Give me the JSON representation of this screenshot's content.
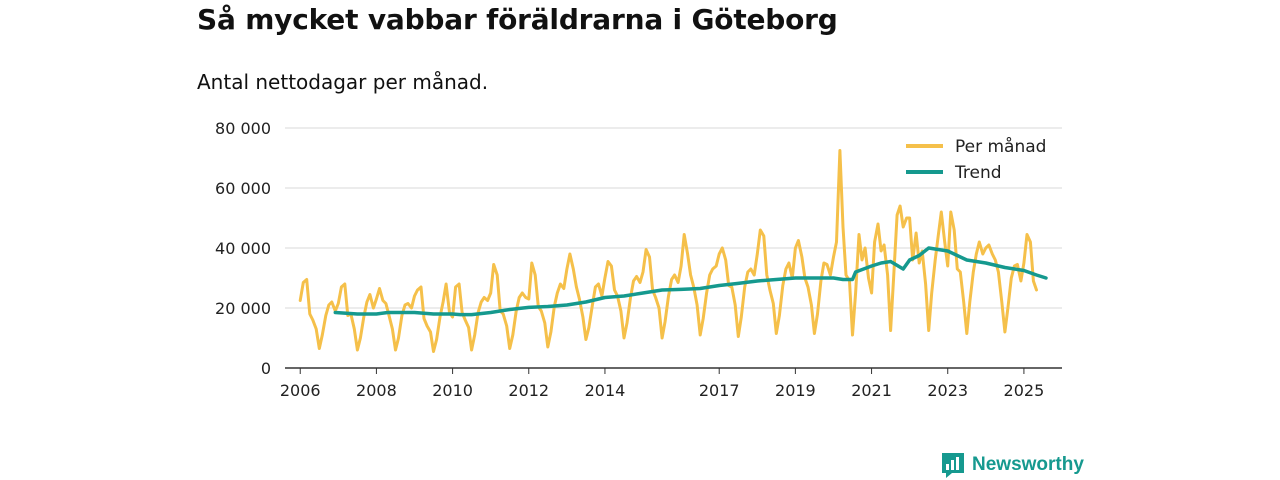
{
  "header": {
    "title": "Så mycket vabbar föräldrarna i Göteborg",
    "subtitle": "Antal nettodagar per månad."
  },
  "brand": {
    "name": "Newsworthy",
    "icon": "chart-bubble-icon",
    "color": "#16998f"
  },
  "colors": {
    "per_month": "#f5c04a",
    "trend": "#15998e",
    "grid": "#d9d9d9",
    "axis": "#333333"
  },
  "chart_data": {
    "type": "line",
    "title": "Så mycket vabbar föräldrarna i Göteborg",
    "subtitle": "Antal nettodagar per månad.",
    "xlabel": "",
    "ylabel": "",
    "ylim": [
      0,
      80000
    ],
    "xlim": [
      2005.6,
      2026.0
    ],
    "yticks": [
      0,
      20000,
      40000,
      60000,
      80000
    ],
    "ytick_labels": [
      "0",
      "20 000",
      "40 000",
      "60 000",
      "80 000"
    ],
    "xticks": [
      2006,
      2008,
      2010,
      2012,
      2014,
      2017,
      2019,
      2021,
      2023,
      2025
    ],
    "xtick_labels": [
      "2006",
      "2008",
      "2010",
      "2012",
      "2014",
      "2017",
      "2019",
      "2021",
      "2023",
      "2025"
    ],
    "grid": true,
    "legend_position": "top-right",
    "series": [
      {
        "name": "Per månad",
        "color": "#f5c04a",
        "points": [
          [
            2006.0,
            22500
          ],
          [
            2006.08,
            28500
          ],
          [
            2006.17,
            29500
          ],
          [
            2006.25,
            18000
          ],
          [
            2006.33,
            16000
          ],
          [
            2006.42,
            13000
          ],
          [
            2006.5,
            6500
          ],
          [
            2006.58,
            11000
          ],
          [
            2006.67,
            17500
          ],
          [
            2006.75,
            21000
          ],
          [
            2006.83,
            22000
          ],
          [
            2006.92,
            19000
          ],
          [
            2007.0,
            21500
          ],
          [
            2007.08,
            27000
          ],
          [
            2007.17,
            28000
          ],
          [
            2007.25,
            17500
          ],
          [
            2007.33,
            18000
          ],
          [
            2007.42,
            13000
          ],
          [
            2007.5,
            6000
          ],
          [
            2007.58,
            10000
          ],
          [
            2007.67,
            17000
          ],
          [
            2007.75,
            22000
          ],
          [
            2007.83,
            24500
          ],
          [
            2007.92,
            20000
          ],
          [
            2008.0,
            23000
          ],
          [
            2008.08,
            26500
          ],
          [
            2008.17,
            22500
          ],
          [
            2008.25,
            21500
          ],
          [
            2008.33,
            17500
          ],
          [
            2008.42,
            13000
          ],
          [
            2008.5,
            6000
          ],
          [
            2008.58,
            10000
          ],
          [
            2008.67,
            17500
          ],
          [
            2008.75,
            21000
          ],
          [
            2008.83,
            21500
          ],
          [
            2008.92,
            20000
          ],
          [
            2009.0,
            24000
          ],
          [
            2009.08,
            26000
          ],
          [
            2009.17,
            27000
          ],
          [
            2009.25,
            16500
          ],
          [
            2009.33,
            14000
          ],
          [
            2009.42,
            12000
          ],
          [
            2009.5,
            5500
          ],
          [
            2009.58,
            9500
          ],
          [
            2009.67,
            17000
          ],
          [
            2009.75,
            22000
          ],
          [
            2009.83,
            28000
          ],
          [
            2009.92,
            18500
          ],
          [
            2010.0,
            17000
          ],
          [
            2010.08,
            27000
          ],
          [
            2010.17,
            28000
          ],
          [
            2010.25,
            18500
          ],
          [
            2010.33,
            16000
          ],
          [
            2010.42,
            13500
          ],
          [
            2010.5,
            6000
          ],
          [
            2010.58,
            11000
          ],
          [
            2010.67,
            18500
          ],
          [
            2010.75,
            22000
          ],
          [
            2010.83,
            23500
          ],
          [
            2010.92,
            22500
          ],
          [
            2011.0,
            25000
          ],
          [
            2011.08,
            34500
          ],
          [
            2011.17,
            31000
          ],
          [
            2011.25,
            19000
          ],
          [
            2011.33,
            18000
          ],
          [
            2011.42,
            14000
          ],
          [
            2011.5,
            6500
          ],
          [
            2011.58,
            11000
          ],
          [
            2011.67,
            19000
          ],
          [
            2011.75,
            23500
          ],
          [
            2011.83,
            25000
          ],
          [
            2011.92,
            23500
          ],
          [
            2012.0,
            23000
          ],
          [
            2012.08,
            35000
          ],
          [
            2012.17,
            31000
          ],
          [
            2012.25,
            20500
          ],
          [
            2012.33,
            19000
          ],
          [
            2012.42,
            15000
          ],
          [
            2012.5,
            7000
          ],
          [
            2012.58,
            12000
          ],
          [
            2012.67,
            20500
          ],
          [
            2012.75,
            25000
          ],
          [
            2012.83,
            28000
          ],
          [
            2012.92,
            26500
          ],
          [
            2013.0,
            33000
          ],
          [
            2013.08,
            38000
          ],
          [
            2013.17,
            33000
          ],
          [
            2013.25,
            27000
          ],
          [
            2013.33,
            23000
          ],
          [
            2013.42,
            17000
          ],
          [
            2013.5,
            9500
          ],
          [
            2013.58,
            13500
          ],
          [
            2013.67,
            21000
          ],
          [
            2013.75,
            27000
          ],
          [
            2013.83,
            28000
          ],
          [
            2013.92,
            24000
          ],
          [
            2014.0,
            30000
          ],
          [
            2014.08,
            35500
          ],
          [
            2014.17,
            34000
          ],
          [
            2014.25,
            26000
          ],
          [
            2014.33,
            24000
          ],
          [
            2014.42,
            19000
          ],
          [
            2014.5,
            10000
          ],
          [
            2014.58,
            15000
          ],
          [
            2014.67,
            23500
          ],
          [
            2014.75,
            29000
          ],
          [
            2014.83,
            30500
          ],
          [
            2014.92,
            28500
          ],
          [
            2015.0,
            32000
          ],
          [
            2015.08,
            39500
          ],
          [
            2015.17,
            37000
          ],
          [
            2015.25,
            26000
          ],
          [
            2015.33,
            23500
          ],
          [
            2015.42,
            20000
          ],
          [
            2015.5,
            10000
          ],
          [
            2015.58,
            15500
          ],
          [
            2015.67,
            24000
          ],
          [
            2015.75,
            29500
          ],
          [
            2015.83,
            31000
          ],
          [
            2015.92,
            28500
          ],
          [
            2016.0,
            34000
          ],
          [
            2016.08,
            44500
          ],
          [
            2016.17,
            38000
          ],
          [
            2016.25,
            31000
          ],
          [
            2016.33,
            27000
          ],
          [
            2016.42,
            21000
          ],
          [
            2016.5,
            11000
          ],
          [
            2016.58,
            16500
          ],
          [
            2016.67,
            25000
          ],
          [
            2016.75,
            31000
          ],
          [
            2016.83,
            33000
          ],
          [
            2016.92,
            34000
          ],
          [
            2017.0,
            38000
          ],
          [
            2017.08,
            40000
          ],
          [
            2017.17,
            36000
          ],
          [
            2017.25,
            27500
          ],
          [
            2017.33,
            27000
          ],
          [
            2017.42,
            21000
          ],
          [
            2017.5,
            10500
          ],
          [
            2017.58,
            17000
          ],
          [
            2017.67,
            27000
          ],
          [
            2017.75,
            32000
          ],
          [
            2017.83,
            33000
          ],
          [
            2017.92,
            31000
          ],
          [
            2018.0,
            38000
          ],
          [
            2018.08,
            46000
          ],
          [
            2018.17,
            44000
          ],
          [
            2018.25,
            31000
          ],
          [
            2018.33,
            26000
          ],
          [
            2018.42,
            21500
          ],
          [
            2018.5,
            11500
          ],
          [
            2018.58,
            17500
          ],
          [
            2018.67,
            27500
          ],
          [
            2018.75,
            33000
          ],
          [
            2018.83,
            35000
          ],
          [
            2018.92,
            30000
          ],
          [
            2019.0,
            40000
          ],
          [
            2019.08,
            42500
          ],
          [
            2019.17,
            37000
          ],
          [
            2019.25,
            30000
          ],
          [
            2019.33,
            27000
          ],
          [
            2019.42,
            21000
          ],
          [
            2019.5,
            11500
          ],
          [
            2019.58,
            18000
          ],
          [
            2019.67,
            29000
          ],
          [
            2019.75,
            35000
          ],
          [
            2019.83,
            34500
          ],
          [
            2019.92,
            31000
          ],
          [
            2020.0,
            37000
          ],
          [
            2020.08,
            42000
          ],
          [
            2020.17,
            72500
          ],
          [
            2020.25,
            47000
          ],
          [
            2020.33,
            31000
          ],
          [
            2020.42,
            29000
          ],
          [
            2020.5,
            11000
          ],
          [
            2020.58,
            25000
          ],
          [
            2020.67,
            44500
          ],
          [
            2020.75,
            36000
          ],
          [
            2020.83,
            40000
          ],
          [
            2020.92,
            30000
          ],
          [
            2021.0,
            25000
          ],
          [
            2021.08,
            42000
          ],
          [
            2021.17,
            48000
          ],
          [
            2021.25,
            39000
          ],
          [
            2021.33,
            41000
          ],
          [
            2021.42,
            31000
          ],
          [
            2021.5,
            12500
          ],
          [
            2021.58,
            30000
          ],
          [
            2021.67,
            51000
          ],
          [
            2021.75,
            54000
          ],
          [
            2021.83,
            47000
          ],
          [
            2021.92,
            50000
          ],
          [
            2022.0,
            50000
          ],
          [
            2022.08,
            36000
          ],
          [
            2022.17,
            45000
          ],
          [
            2022.25,
            35000
          ],
          [
            2022.33,
            39000
          ],
          [
            2022.42,
            28000
          ],
          [
            2022.5,
            12500
          ],
          [
            2022.58,
            25000
          ],
          [
            2022.67,
            36000
          ],
          [
            2022.75,
            44000
          ],
          [
            2022.83,
            52000
          ],
          [
            2022.92,
            42000
          ],
          [
            2023.0,
            34000
          ],
          [
            2023.08,
            52000
          ],
          [
            2023.17,
            46000
          ],
          [
            2023.25,
            33000
          ],
          [
            2023.33,
            32000
          ],
          [
            2023.42,
            22000
          ],
          [
            2023.5,
            11500
          ],
          [
            2023.58,
            22000
          ],
          [
            2023.67,
            32000
          ],
          [
            2023.75,
            38000
          ],
          [
            2023.83,
            42000
          ],
          [
            2023.92,
            38000
          ],
          [
            2024.0,
            40000
          ],
          [
            2024.08,
            41000
          ],
          [
            2024.17,
            38000
          ],
          [
            2024.25,
            36000
          ],
          [
            2024.33,
            32000
          ],
          [
            2024.42,
            22000
          ],
          [
            2024.5,
            12000
          ],
          [
            2024.58,
            20000
          ],
          [
            2024.67,
            30000
          ],
          [
            2024.75,
            34000
          ],
          [
            2024.83,
            34500
          ],
          [
            2024.92,
            29000
          ],
          [
            2025.0,
            35000
          ],
          [
            2025.08,
            44500
          ],
          [
            2025.17,
            42000
          ],
          [
            2025.25,
            29000
          ],
          [
            2025.33,
            26000
          ]
        ]
      },
      {
        "name": "Trend",
        "color": "#15998e",
        "points": [
          [
            2006.92,
            18500
          ],
          [
            2007.5,
            18000
          ],
          [
            2008.0,
            18000
          ],
          [
            2008.3,
            18500
          ],
          [
            2009.0,
            18500
          ],
          [
            2009.5,
            18000
          ],
          [
            2010.0,
            18000
          ],
          [
            2010.2,
            17800
          ],
          [
            2010.5,
            17800
          ],
          [
            2011.0,
            18500
          ],
          [
            2011.5,
            19500
          ],
          [
            2012.0,
            20200
          ],
          [
            2012.5,
            20500
          ],
          [
            2013.0,
            21000
          ],
          [
            2013.5,
            22000
          ],
          [
            2014.0,
            23500
          ],
          [
            2014.5,
            24000
          ],
          [
            2015.0,
            25000
          ],
          [
            2015.5,
            26000
          ],
          [
            2016.0,
            26200
          ],
          [
            2016.5,
            26500
          ],
          [
            2017.0,
            27500
          ],
          [
            2017.5,
            28200
          ],
          [
            2018.0,
            29000
          ],
          [
            2018.5,
            29500
          ],
          [
            2019.0,
            30000
          ],
          [
            2019.5,
            30000
          ],
          [
            2020.0,
            30000
          ],
          [
            2020.25,
            29500
          ],
          [
            2020.5,
            29500
          ],
          [
            2020.58,
            32000
          ],
          [
            2021.0,
            34000
          ],
          [
            2021.25,
            35000
          ],
          [
            2021.5,
            35500
          ],
          [
            2021.83,
            33000
          ],
          [
            2022.0,
            36000
          ],
          [
            2022.25,
            37500
          ],
          [
            2022.5,
            40000
          ],
          [
            2022.75,
            39500
          ],
          [
            2023.0,
            39000
          ],
          [
            2023.5,
            36000
          ],
          [
            2024.0,
            35000
          ],
          [
            2024.5,
            33500
          ],
          [
            2025.0,
            32500
          ],
          [
            2025.33,
            31000
          ],
          [
            2025.58,
            30000
          ]
        ]
      }
    ]
  }
}
